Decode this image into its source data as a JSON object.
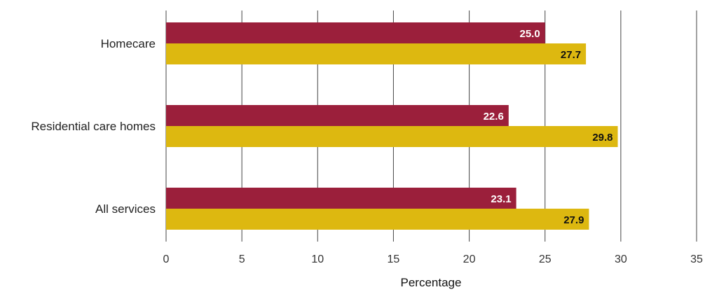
{
  "chart_data": {
    "type": "bar",
    "orientation": "horizontal",
    "title": "",
    "xlabel": "Percentage",
    "ylabel": "",
    "xlim": [
      0,
      35
    ],
    "x_ticks": [
      0,
      5,
      10,
      15,
      20,
      25,
      30,
      35
    ],
    "grid": true,
    "categories": [
      "Homecare",
      "Residential care homes",
      "All services"
    ],
    "series": [
      {
        "color": "#9b1f3b",
        "label_color": "#ffffff",
        "values": [
          25.0,
          22.6,
          23.1
        ],
        "labels": [
          "25.0",
          "22.6",
          "23.1"
        ]
      },
      {
        "color": "#ddb810",
        "label_color": "#111111",
        "values": [
          27.7,
          29.8,
          27.9
        ],
        "labels": [
          "27.7",
          "29.8",
          "27.9"
        ]
      }
    ]
  }
}
